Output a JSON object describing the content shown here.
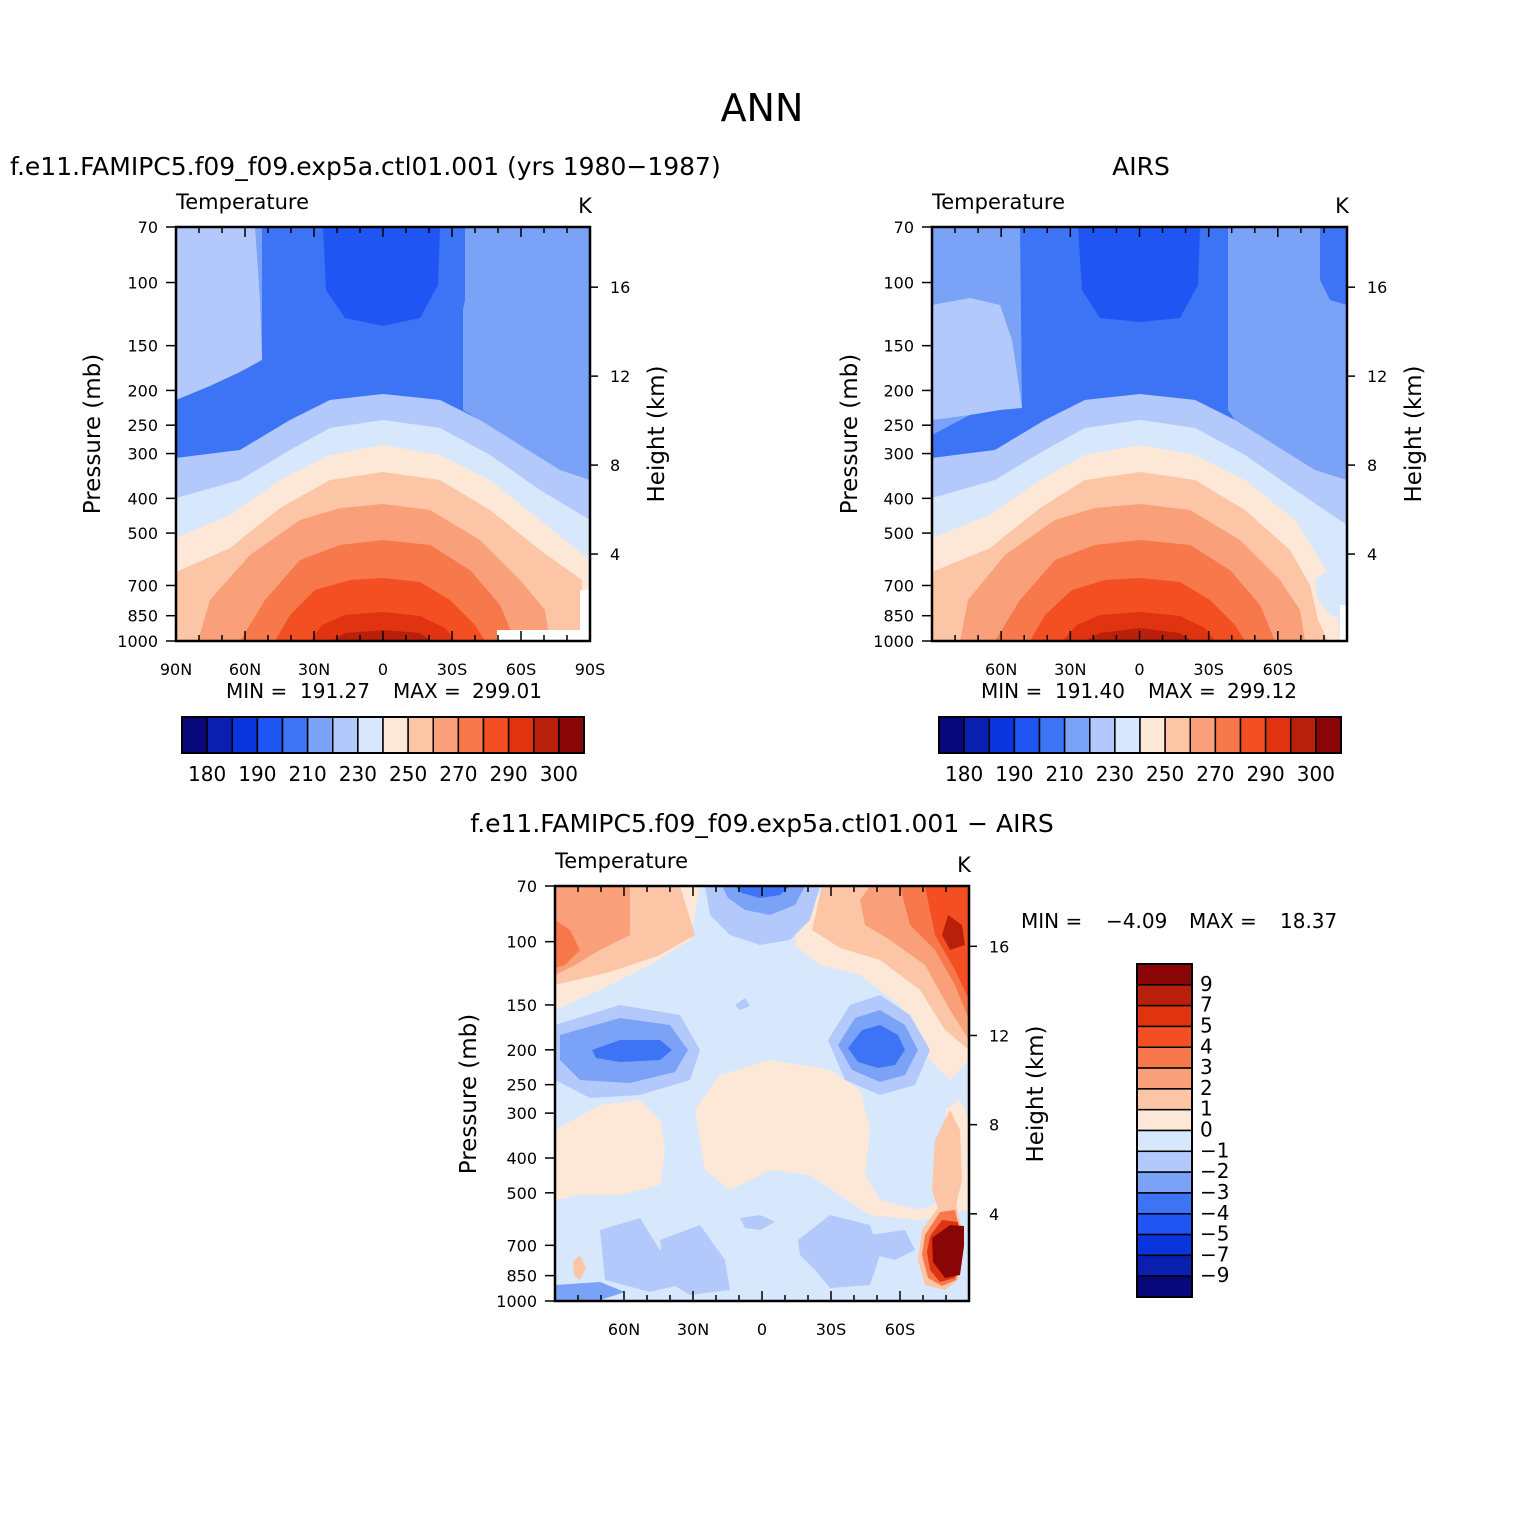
{
  "page_title": "ANN",
  "chart_data": [
    {
      "type": "heatmap",
      "id": "model",
      "title": "f.e11.FAMIPC5.f09_f09.exp5a.ctl01.001 (yrs 1980−1987)",
      "left_label": "Temperature",
      "right_label": "K",
      "ylabel": "Pressure (mb)",
      "y2label": "Height (km)",
      "x_ticks": [
        "90N",
        "60N",
        "30N",
        "0",
        "30S",
        "60S",
        "90S"
      ],
      "y_ticks": [
        "70",
        "100",
        "150",
        "200",
        "250",
        "300",
        "400",
        "500",
        "700",
        "850",
        "1000"
      ],
      "y2_ticks": [
        "16",
        "12",
        "8",
        "4"
      ],
      "min_label": "MIN =",
      "min_value": "191.27",
      "max_label": "MAX =",
      "max_value": "299.01",
      "colorbar_labels": [
        "180",
        "190",
        "210",
        "230",
        "250",
        "270",
        "290",
        "300"
      ]
    },
    {
      "type": "heatmap",
      "id": "obs",
      "title": "AIRS",
      "left_label": "Temperature",
      "right_label": "K",
      "ylabel": "Pressure (mb)",
      "y2label": "Height (km)",
      "x_ticks": [
        "60N",
        "30N",
        "0",
        "30S",
        "60S"
      ],
      "y_ticks": [
        "70",
        "100",
        "150",
        "200",
        "250",
        "300",
        "400",
        "500",
        "700",
        "850",
        "1000"
      ],
      "y2_ticks": [
        "16",
        "12",
        "8",
        "4"
      ],
      "min_label": "MIN =",
      "min_value": "191.40",
      "max_label": "MAX =",
      "max_value": "299.12",
      "colorbar_labels": [
        "180",
        "190",
        "210",
        "230",
        "250",
        "270",
        "290",
        "300"
      ]
    },
    {
      "type": "heatmap",
      "id": "diff",
      "title": "f.e11.FAMIPC5.f09_f09.exp5a.ctl01.001 − AIRS",
      "left_label": "Temperature",
      "right_label": "K",
      "ylabel": "Pressure (mb)",
      "y2label": "Height (km)",
      "x_ticks": [
        "60N",
        "30N",
        "0",
        "30S",
        "60S"
      ],
      "y_ticks": [
        "70",
        "100",
        "150",
        "200",
        "250",
        "300",
        "400",
        "500",
        "700",
        "850",
        "1000"
      ],
      "y2_ticks": [
        "16",
        "12",
        "8",
        "4"
      ],
      "min_label": "MIN =",
      "min_value": "−4.09",
      "max_label": "MAX =",
      "max_value": "18.37",
      "colorbar_labels": [
        "9",
        "7",
        "5",
        "4",
        "3",
        "2",
        "1",
        "0",
        "−1",
        "−2",
        "−3",
        "−4",
        "−5",
        "−7",
        "−9"
      ]
    }
  ],
  "colors": {
    "temp_palette": [
      "#08087a",
      "#0a1fb0",
      "#0a34dc",
      "#1f55f2",
      "#3d73f5",
      "#7aa3f8",
      "#b3c9fb",
      "#d8e8fc",
      "#fde8d8",
      "#fbc5a6",
      "#f99f7a",
      "#f7784a",
      "#f34f22",
      "#e03410",
      "#b8200c",
      "#8a0505"
    ],
    "diff_palette": [
      "#8a0505",
      "#b8200c",
      "#e03410",
      "#f34f22",
      "#f7784a",
      "#f99f7a",
      "#fbc5a6",
      "#fde8d8",
      "#d8e8fc",
      "#b3c9fb",
      "#7aa3f8",
      "#3d73f5",
      "#1f55f2",
      "#0a34dc",
      "#0a1fb0",
      "#08087a"
    ]
  }
}
